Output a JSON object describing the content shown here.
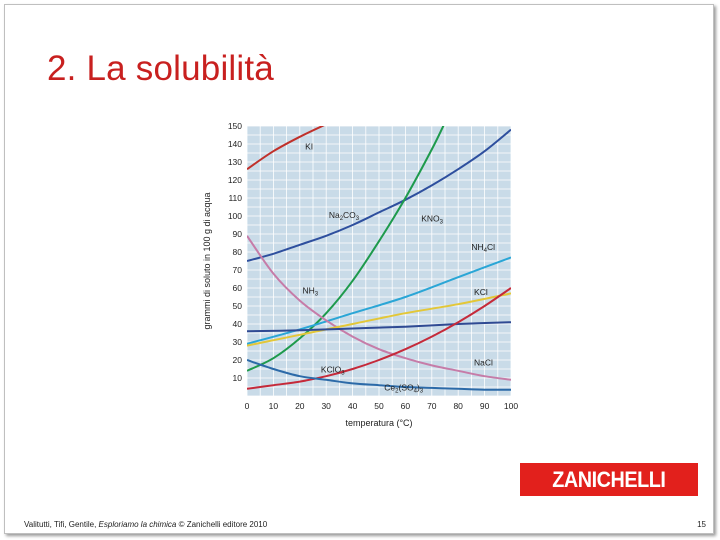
{
  "slide": {
    "title": "2. La solubilità",
    "footer": {
      "authors": "Valitutti, Tifi, Gentile, ",
      "book": "Esploriamo la chimica",
      "publisher": " © Zanichelli editore 2010"
    },
    "page_number": "15",
    "logo": "ZANICHELLI",
    "accent_color": "#c8201f",
    "logo_color": "#e2201c"
  },
  "chart_data": {
    "type": "line",
    "title": "",
    "xlabel": "temperatura (°C)",
    "ylabel": "grammi di soluto in 100 g di acqua",
    "xlim": [
      0,
      100
    ],
    "ylim": [
      0,
      150
    ],
    "xticks": [
      0,
      10,
      20,
      30,
      40,
      50,
      60,
      70,
      80,
      90,
      100
    ],
    "yticks": [
      10,
      20,
      30,
      40,
      50,
      60,
      70,
      80,
      90,
      100,
      110,
      120,
      130,
      140,
      150
    ],
    "grid": true,
    "background": "#c9dbe8",
    "series": [
      {
        "name": "KI",
        "color": "#c0302a",
        "x": [
          0,
          10,
          20,
          30
        ],
        "y": [
          126,
          136,
          144,
          151
        ]
      },
      {
        "name": "Na2CO3",
        "color": "#2e4f9e",
        "x": [
          0,
          10,
          20,
          30,
          40,
          50,
          60,
          70,
          80,
          90,
          100
        ],
        "y": [
          75,
          79,
          84,
          89,
          95,
          102,
          109,
          117,
          126,
          136,
          148
        ]
      },
      {
        "name": "KNO3",
        "color": "#1e9a4c",
        "x": [
          0,
          10,
          20,
          30,
          40,
          50,
          60,
          70,
          75
        ],
        "y": [
          14,
          21,
          32,
          46,
          64,
          86,
          110,
          137,
          152
        ]
      },
      {
        "name": "NH4Cl",
        "color": "#2aa6d6",
        "x": [
          0,
          20,
          40,
          60,
          80,
          100
        ],
        "y": [
          29,
          37,
          46,
          55,
          66,
          77
        ]
      },
      {
        "name": "NH3",
        "color": "#c67ca8",
        "x": [
          0,
          10,
          20,
          30,
          40,
          50,
          60,
          70,
          80,
          90,
          100
        ],
        "y": [
          89,
          68,
          53,
          42,
          33,
          26,
          21,
          17,
          14,
          11,
          9
        ]
      },
      {
        "name": "KCl",
        "color": "#e3c738",
        "x": [
          0,
          20,
          40,
          60,
          80,
          100
        ],
        "y": [
          28,
          34,
          40,
          46,
          51,
          57
        ]
      },
      {
        "name": "NaCl",
        "color": "#2f4a93",
        "x": [
          0,
          20,
          40,
          60,
          80,
          100
        ],
        "y": [
          36,
          36.5,
          37.5,
          38.5,
          40,
          41
        ]
      },
      {
        "name": "KClO3",
        "color": "#c52a3a",
        "x": [
          0,
          10,
          20,
          30,
          40,
          50,
          60,
          70,
          80,
          90,
          100
        ],
        "y": [
          4,
          6,
          8,
          11,
          15,
          20,
          26,
          33,
          41,
          50,
          60
        ]
      },
      {
        "name": "Ce2(SO4)3",
        "color": "#2c6aa8",
        "x": [
          0,
          10,
          20,
          30,
          40,
          50,
          60,
          70,
          80,
          90,
          100
        ],
        "y": [
          20,
          15,
          11,
          9,
          7,
          6,
          5,
          4.5,
          4,
          3.5,
          3.5
        ]
      }
    ],
    "labels": [
      {
        "text": "KI",
        "sub": "",
        "tail": "",
        "x": 22,
        "y": 137
      },
      {
        "text": "Na",
        "sub": "2",
        "tail": "CO",
        "sub2": "3",
        "x": 31,
        "y": 99
      },
      {
        "text": "KNO",
        "sub": "3",
        "tail": "",
        "x": 66,
        "y": 97
      },
      {
        "text": "NH",
        "sub": "4",
        "tail": "Cl",
        "x": 85,
        "y": 81
      },
      {
        "text": "NH",
        "sub": "3",
        "tail": "",
        "x": 21,
        "y": 57
      },
      {
        "text": "KCl",
        "sub": "",
        "tail": "",
        "x": 86,
        "y": 56
      },
      {
        "text": "NaCl",
        "sub": "",
        "tail": "",
        "x": 86,
        "y": 17
      },
      {
        "text": "KClO",
        "sub": "3",
        "tail": "",
        "x": 28,
        "y": 13
      },
      {
        "text": "Ce",
        "sub": "2",
        "tail": "(SO",
        "sub2": "4",
        "tail2": ")",
        "sub3": "3",
        "x": 52,
        "y": 3
      }
    ]
  }
}
